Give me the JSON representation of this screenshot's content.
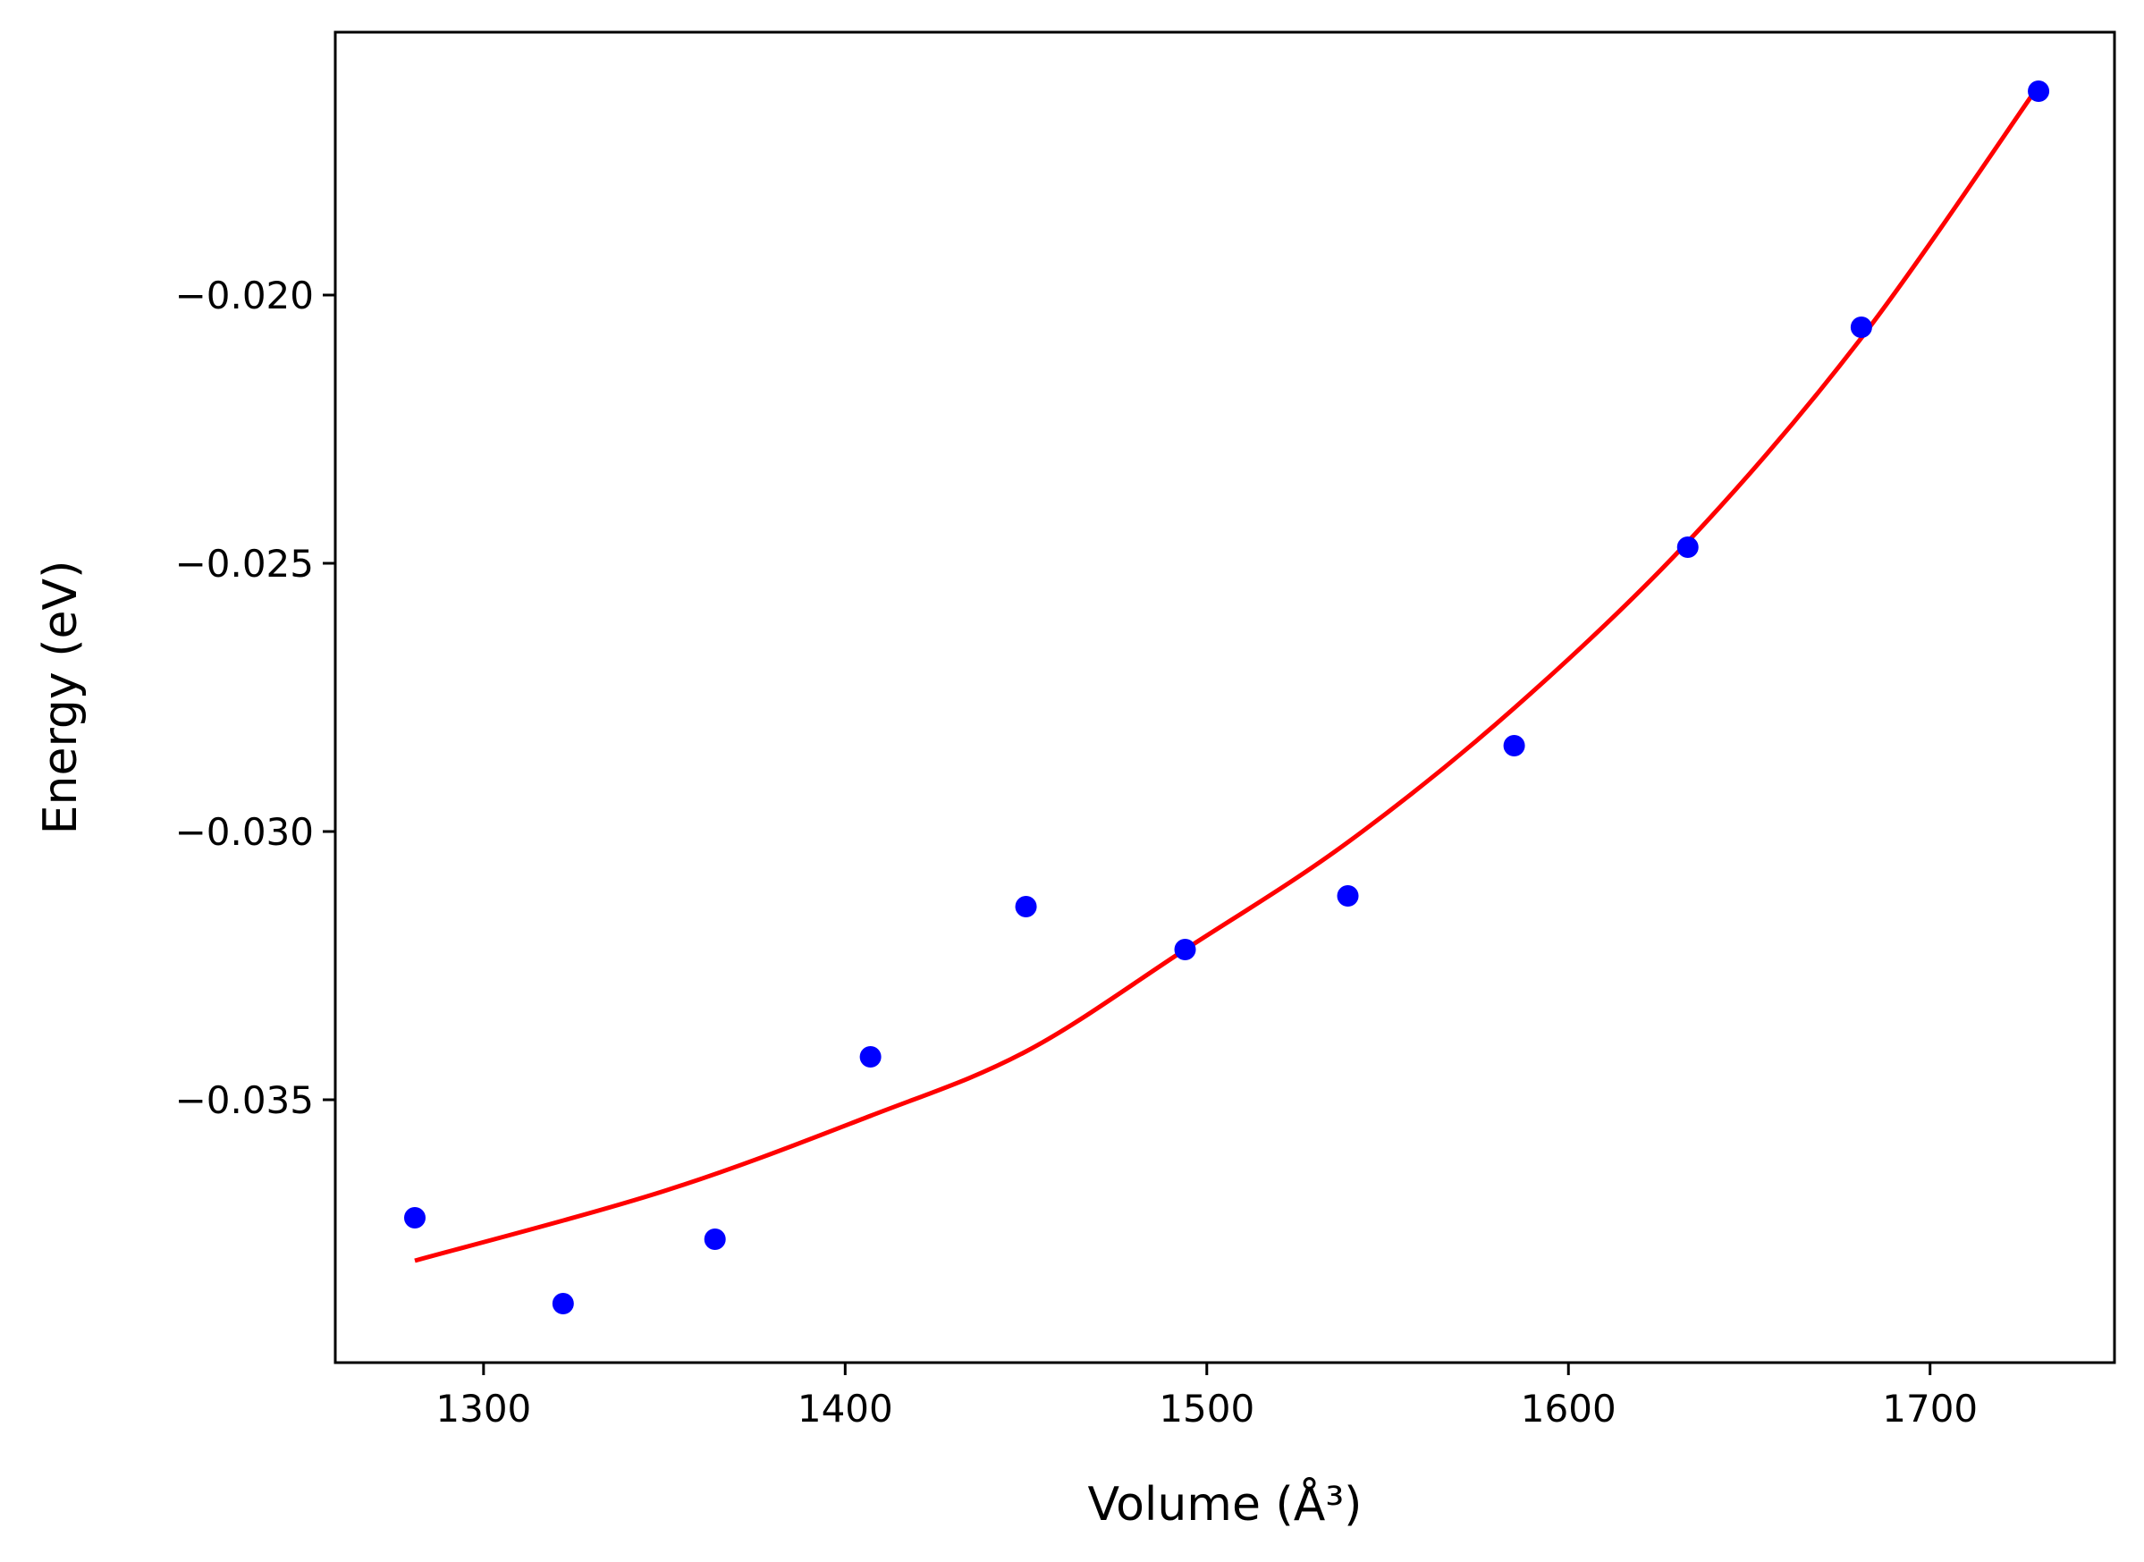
{
  "chart_data": {
    "type": "scatter",
    "xlabel": "Volume (Å³)",
    "ylabel": "Energy (eV)",
    "xlim": [
      1259,
      1751
    ],
    "ylim": [
      -0.0399,
      -0.0151
    ],
    "x_ticks": [
      1300,
      1400,
      1500,
      1600,
      1700
    ],
    "x_tick_labels": [
      "1300",
      "1400",
      "1500",
      "1600",
      "1700"
    ],
    "y_ticks": [
      -0.02,
      -0.025,
      -0.03,
      -0.035
    ],
    "y_tick_labels": [
      "−0.020",
      "−0.025",
      "−0.030",
      "−0.035"
    ],
    "grid": false,
    "legend": false,
    "series": [
      {
        "type": "scatter",
        "color": "#0000ff",
        "points": [
          {
            "x": 1281,
            "y": -0.0372
          },
          {
            "x": 1322,
            "y": -0.0388
          },
          {
            "x": 1364,
            "y": -0.0376
          },
          {
            "x": 1407,
            "y": -0.0342
          },
          {
            "x": 1450,
            "y": -0.0314
          },
          {
            "x": 1494,
            "y": -0.0322
          },
          {
            "x": 1539,
            "y": -0.0312
          },
          {
            "x": 1585,
            "y": -0.0284
          },
          {
            "x": 1633,
            "y": -0.0247
          },
          {
            "x": 1681,
            "y": -0.0206
          },
          {
            "x": 1730,
            "y": -0.0162
          }
        ]
      },
      {
        "type": "line",
        "color": "#ff0000",
        "points": [
          {
            "x": 1281,
            "y": -0.038
          },
          {
            "x": 1350,
            "y": -0.0367
          },
          {
            "x": 1407,
            "y": -0.0353
          },
          {
            "x": 1450,
            "y": -0.0341
          },
          {
            "x": 1494,
            "y": -0.0322
          },
          {
            "x": 1539,
            "y": -0.0302
          },
          {
            "x": 1585,
            "y": -0.0277
          },
          {
            "x": 1633,
            "y": -0.0246
          },
          {
            "x": 1681,
            "y": -0.0208
          },
          {
            "x": 1730,
            "y": -0.0161
          }
        ]
      }
    ]
  }
}
